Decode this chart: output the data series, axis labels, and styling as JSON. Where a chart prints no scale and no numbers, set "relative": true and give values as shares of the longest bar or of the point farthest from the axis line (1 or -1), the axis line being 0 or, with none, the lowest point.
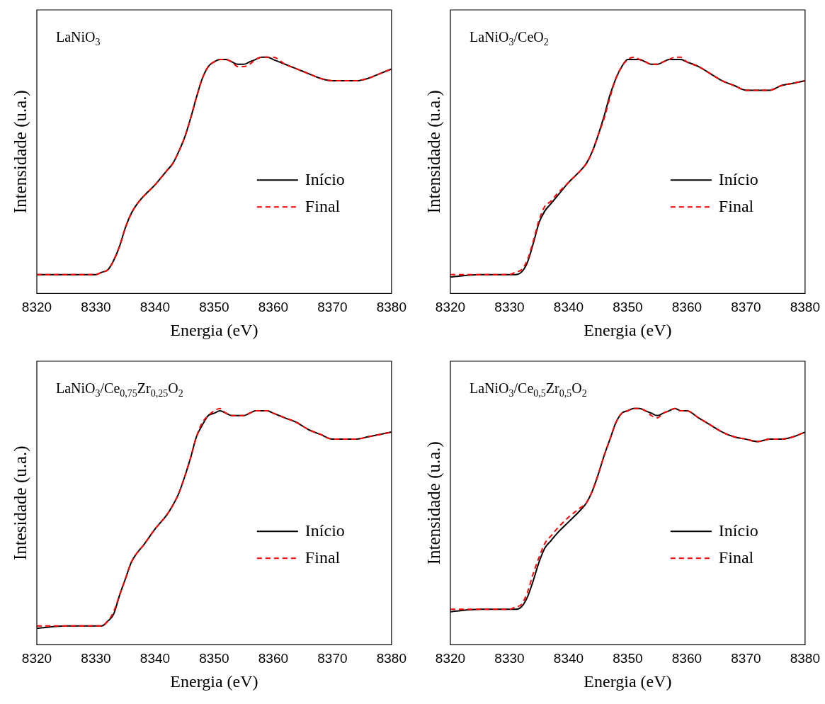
{
  "chart_data": [
    {
      "type": "line",
      "title": "LaNiO$_{3}$",
      "xlabel": "Energia (eV)",
      "ylabel": "Intensidade (u.a.)",
      "relative": true,
      "legend": "right",
      "xlim": [
        8320,
        8380
      ],
      "xticks": [
        8320,
        8330,
        8340,
        8350,
        8360,
        8370,
        8380
      ],
      "x": [
        8320,
        8325,
        8330,
        8331,
        8332,
        8333,
        8334,
        8335,
        8336,
        8337,
        8338,
        8340,
        8342,
        8343,
        8344,
        8345,
        8346,
        8347,
        8348,
        8349,
        8350,
        8351,
        8352,
        8353,
        8354,
        8355,
        8356,
        8357,
        8358,
        8359,
        8360,
        8362,
        8364,
        8366,
        8368,
        8370,
        8372,
        8374,
        8376,
        8378,
        8380
      ],
      "series": [
        {
          "name": "Início",
          "color": "#000000",
          "line_style": "solid",
          "values": [
            0.08,
            0.08,
            0.08,
            0.09,
            0.1,
            0.14,
            0.2,
            0.28,
            0.34,
            0.38,
            0.41,
            0.46,
            0.52,
            0.55,
            0.6,
            0.66,
            0.74,
            0.83,
            0.91,
            0.96,
            0.98,
            0.99,
            0.99,
            0.98,
            0.97,
            0.97,
            0.98,
            0.99,
            1.0,
            1.0,
            0.99,
            0.97,
            0.95,
            0.93,
            0.91,
            0.9,
            0.9,
            0.9,
            0.91,
            0.93,
            0.95
          ]
        },
        {
          "name": "Final",
          "color": "#ff0000",
          "line_style": "dashed",
          "values": [
            0.08,
            0.08,
            0.08,
            0.09,
            0.1,
            0.14,
            0.2,
            0.28,
            0.34,
            0.38,
            0.41,
            0.46,
            0.52,
            0.55,
            0.6,
            0.66,
            0.74,
            0.83,
            0.91,
            0.96,
            0.98,
            0.99,
            0.99,
            0.98,
            0.96,
            0.96,
            0.97,
            0.99,
            1.0,
            1.0,
            1.0,
            0.97,
            0.95,
            0.93,
            0.91,
            0.9,
            0.9,
            0.9,
            0.91,
            0.93,
            0.95
          ]
        }
      ]
    },
    {
      "type": "line",
      "title": "LaNiO$_{3}$/CeO$_{2}$",
      "xlabel": "Energia (eV)",
      "ylabel": "Intensidade (u.a.)",
      "relative": true,
      "legend": "right",
      "xlim": [
        8320,
        8380
      ],
      "xticks": [
        8320,
        8330,
        8340,
        8350,
        8360,
        8370,
        8380
      ],
      "x": [
        8320,
        8325,
        8330,
        8331,
        8332,
        8333,
        8334,
        8335,
        8336,
        8337,
        8338,
        8340,
        8342,
        8343,
        8344,
        8345,
        8346,
        8347,
        8348,
        8349,
        8350,
        8351,
        8352,
        8353,
        8354,
        8355,
        8356,
        8357,
        8358,
        8359,
        8360,
        8362,
        8364,
        8366,
        8368,
        8370,
        8372,
        8374,
        8376,
        8378,
        8380
      ],
      "series": [
        {
          "name": "Início",
          "color": "#000000",
          "line_style": "solid",
          "values": [
            0.07,
            0.08,
            0.08,
            0.08,
            0.09,
            0.13,
            0.21,
            0.3,
            0.35,
            0.38,
            0.41,
            0.47,
            0.52,
            0.55,
            0.6,
            0.67,
            0.75,
            0.84,
            0.91,
            0.96,
            0.99,
            0.99,
            0.99,
            0.98,
            0.97,
            0.97,
            0.98,
            0.99,
            0.99,
            0.99,
            0.98,
            0.96,
            0.93,
            0.9,
            0.88,
            0.86,
            0.86,
            0.86,
            0.88,
            0.89,
            0.9
          ]
        },
        {
          "name": "Final",
          "color": "#ff0000",
          "line_style": "dashed",
          "values": [
            0.08,
            0.08,
            0.08,
            0.09,
            0.1,
            0.14,
            0.22,
            0.31,
            0.37,
            0.39,
            0.42,
            0.47,
            0.52,
            0.55,
            0.6,
            0.67,
            0.74,
            0.83,
            0.91,
            0.96,
            0.99,
            1.0,
            0.99,
            0.98,
            0.97,
            0.97,
            0.98,
            0.99,
            1.0,
            1.0,
            0.98,
            0.96,
            0.93,
            0.9,
            0.88,
            0.86,
            0.86,
            0.86,
            0.88,
            0.89,
            0.9
          ]
        }
      ]
    },
    {
      "type": "line",
      "title": "LaNiO$_{3}$/Ce$_{0,75}$Zr$_{0,25}$O$_{2}$",
      "xlabel": "Energia (eV)",
      "ylabel": "Intesidade (u.a.)",
      "relative": true,
      "legend": "right",
      "xlim": [
        8320,
        8380
      ],
      "xticks": [
        8320,
        8330,
        8340,
        8350,
        8360,
        8370,
        8380
      ],
      "x": [
        8320,
        8325,
        8330,
        8331,
        8332,
        8333,
        8334,
        8335,
        8336,
        8337,
        8338,
        8340,
        8342,
        8343,
        8344,
        8345,
        8346,
        8347,
        8348,
        8349,
        8350,
        8351,
        8352,
        8353,
        8354,
        8355,
        8356,
        8357,
        8358,
        8359,
        8360,
        8362,
        8364,
        8366,
        8368,
        8370,
        8372,
        8374,
        8376,
        8378,
        8380
      ],
      "series": [
        {
          "name": "Início",
          "color": "#000000",
          "line_style": "solid",
          "values": [
            0.07,
            0.08,
            0.08,
            0.08,
            0.1,
            0.13,
            0.21,
            0.28,
            0.35,
            0.39,
            0.42,
            0.49,
            0.55,
            0.59,
            0.64,
            0.71,
            0.79,
            0.88,
            0.93,
            0.97,
            0.98,
            0.99,
            0.98,
            0.97,
            0.97,
            0.97,
            0.98,
            0.99,
            0.99,
            0.99,
            0.98,
            0.96,
            0.94,
            0.91,
            0.89,
            0.87,
            0.87,
            0.87,
            0.88,
            0.89,
            0.9
          ]
        },
        {
          "name": "Final",
          "color": "#ff0000",
          "line_style": "dashed",
          "values": [
            0.08,
            0.08,
            0.08,
            0.08,
            0.1,
            0.14,
            0.21,
            0.28,
            0.35,
            0.39,
            0.42,
            0.49,
            0.55,
            0.59,
            0.64,
            0.71,
            0.79,
            0.88,
            0.94,
            0.97,
            0.99,
            1.0,
            0.98,
            0.97,
            0.97,
            0.97,
            0.98,
            0.99,
            0.99,
            0.99,
            0.98,
            0.96,
            0.94,
            0.91,
            0.89,
            0.87,
            0.87,
            0.87,
            0.88,
            0.89,
            0.9
          ]
        }
      ]
    },
    {
      "type": "line",
      "title": "LaNiO$_{3}$/Ce$_{0,5}$Zr$_{0,5}$O$_{2}$",
      "xlabel": "Energia (eV)",
      "ylabel": "Intensidade (u.a.)",
      "relative": true,
      "legend": "right",
      "xlim": [
        8320,
        8380
      ],
      "xticks": [
        8320,
        8330,
        8340,
        8350,
        8360,
        8370,
        8380
      ],
      "x": [
        8320,
        8325,
        8330,
        8331,
        8332,
        8333,
        8334,
        8335,
        8336,
        8337,
        8338,
        8340,
        8342,
        8343,
        8344,
        8345,
        8346,
        8347,
        8348,
        8349,
        8350,
        8351,
        8352,
        8353,
        8354,
        8355,
        8356,
        8357,
        8358,
        8359,
        8360,
        8362,
        8364,
        8366,
        8368,
        8370,
        8372,
        8374,
        8376,
        8378,
        8380
      ],
      "series": [
        {
          "name": "Início",
          "color": "#000000",
          "line_style": "solid",
          "values": [
            0.14,
            0.15,
            0.15,
            0.15,
            0.16,
            0.2,
            0.27,
            0.35,
            0.41,
            0.44,
            0.47,
            0.52,
            0.57,
            0.6,
            0.65,
            0.72,
            0.8,
            0.87,
            0.94,
            0.98,
            0.99,
            1.0,
            1.0,
            0.99,
            0.98,
            0.97,
            0.98,
            0.99,
            1.0,
            0.99,
            0.99,
            0.96,
            0.93,
            0.9,
            0.88,
            0.87,
            0.86,
            0.87,
            0.87,
            0.88,
            0.9
          ]
        },
        {
          "name": "Final",
          "color": "#ff0000",
          "line_style": "dashed",
          "values": [
            0.15,
            0.15,
            0.15,
            0.16,
            0.17,
            0.22,
            0.3,
            0.37,
            0.43,
            0.46,
            0.49,
            0.54,
            0.58,
            0.6,
            0.65,
            0.72,
            0.8,
            0.87,
            0.94,
            0.98,
            0.99,
            1.0,
            1.0,
            0.99,
            0.97,
            0.96,
            0.98,
            0.99,
            1.0,
            0.99,
            0.99,
            0.96,
            0.93,
            0.9,
            0.88,
            0.87,
            0.86,
            0.87,
            0.87,
            0.88,
            0.9
          ]
        }
      ]
    }
  ]
}
